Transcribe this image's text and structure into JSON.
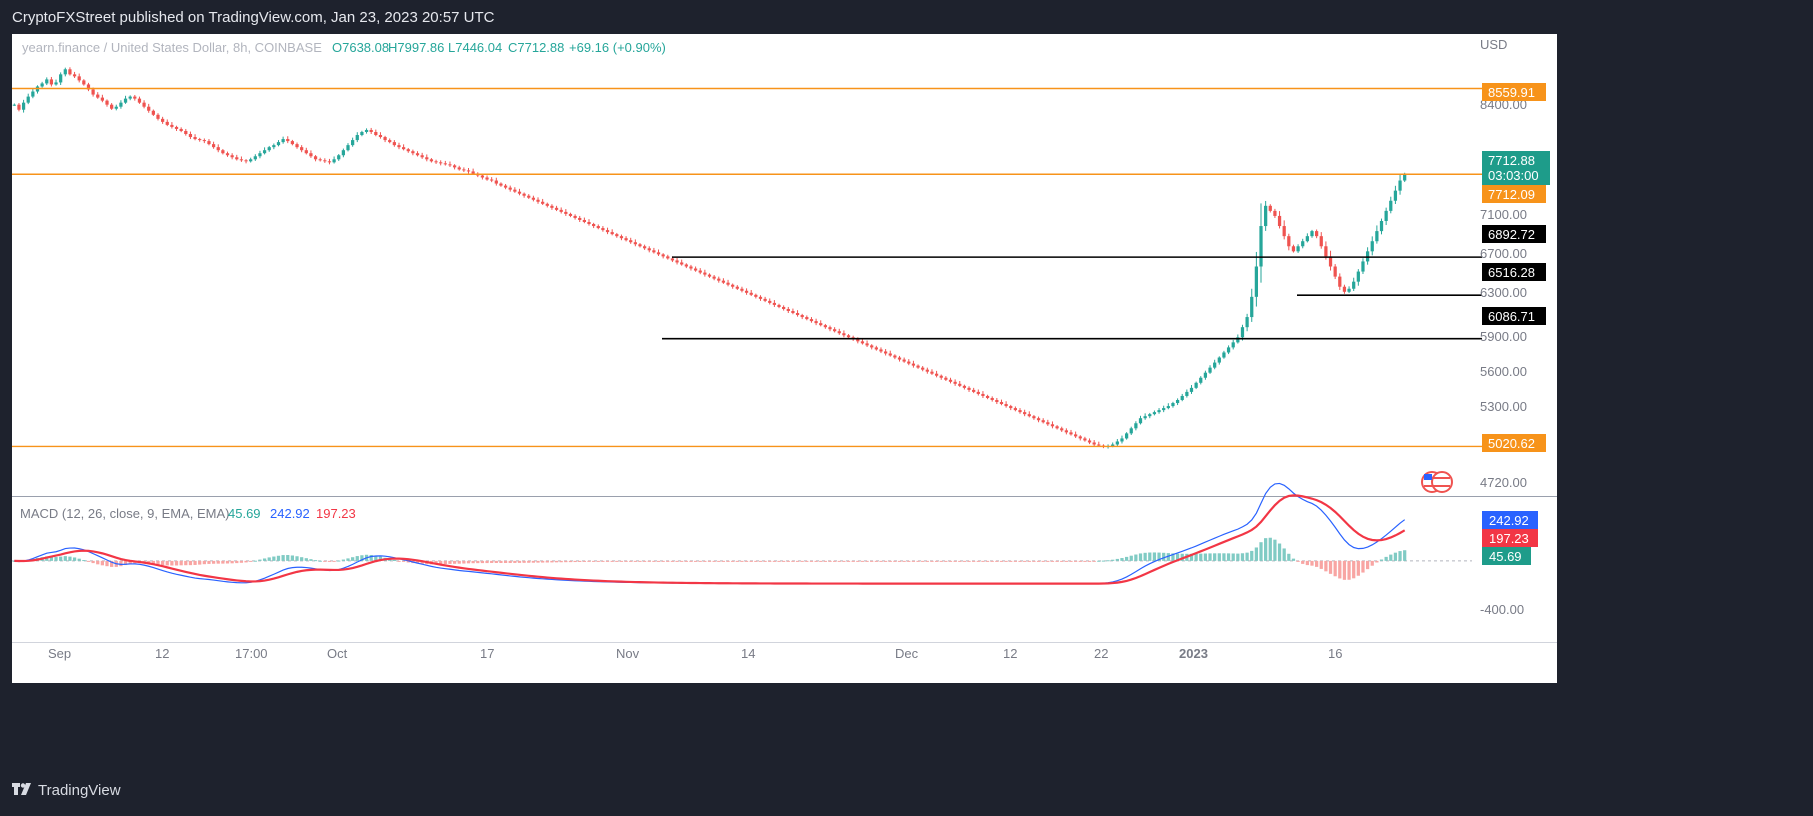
{
  "header": {
    "published": "CryptoFXStreet published on TradingView.com, Jan 23, 2023 20:57 UTC"
  },
  "footer": {
    "brand": "TradingView",
    "logo": "tradingview-logo-icon"
  },
  "symbol_line": {
    "name": "yearn.finance / United States Dollar, 8h, COINBASE",
    "open": "O7638.08",
    "high": "H7997.86",
    "low": "L7446.04",
    "close": "C7712.88",
    "change": "+69.16 (+0.90%)"
  },
  "price_scale": {
    "currency": "USD",
    "ticks": [
      "8400.00",
      "7100.00",
      "6700.00",
      "6300.00",
      "5900.00",
      "5600.00",
      "5300.00",
      "4720.00"
    ]
  },
  "macd_legend": {
    "label": "MACD (12, 26, close, 9, EMA, EMA)",
    "histogram": "45.69",
    "macd": "242.92",
    "signal": "197.23"
  },
  "macd_scale": {
    "ticks": [
      "-400.00"
    ]
  },
  "x_axis": {
    "ticks": [
      "Sep",
      "12",
      "17:00",
      "Oct",
      "17",
      "Nov",
      "14",
      "Dec",
      "12",
      "22",
      "2023",
      "16"
    ]
  },
  "colors": {
    "up": "#26a69a",
    "down": "#ef5350",
    "orange": "#f7931a",
    "macd": "#2962ff",
    "signal": "#f23645"
  },
  "chart_data": [
    {
      "type": "candlestick",
      "title": "yearn.finance / United States Dollar, 8h, COINBASE",
      "ylim": [
        4600,
        9000
      ],
      "horizontal_levels": [
        {
          "value": 8559.91,
          "label": "8559.91",
          "color": "#f7931a"
        },
        {
          "value": 7712.09,
          "label": "7712.09",
          "color": "#f7931a"
        },
        {
          "value": 6892.72,
          "label": "6892.72",
          "color": "#000000"
        },
        {
          "value": 6516.28,
          "label": "6516.28",
          "color": "#000000"
        },
        {
          "value": 6086.71,
          "label": "6086.71",
          "color": "#000000"
        },
        {
          "value": 5020.62,
          "label": "5020.62",
          "color": "#f7931a"
        }
      ],
      "last_price": {
        "value": 7712.88,
        "label": "7712.88",
        "countdown": "03:03:00"
      },
      "close_series": [
        8400,
        8350,
        8420,
        8480,
        8530,
        8580,
        8610,
        8650,
        8600,
        8620,
        8700,
        8750,
        8700,
        8680,
        8640,
        8600,
        8550,
        8500,
        8470,
        8440,
        8400,
        8360,
        8380,
        8420,
        8460,
        8480,
        8460,
        8420,
        8380,
        8340,
        8300,
        8260,
        8230,
        8200,
        8180,
        8160,
        8140,
        8110,
        8080,
        8060,
        8050,
        8040,
        8010,
        7980,
        7950,
        7920,
        7900,
        7880,
        7860,
        7850,
        7840,
        7860,
        7890,
        7920,
        7950,
        7980,
        8000,
        8030,
        8060,
        8040,
        8010,
        7980,
        7950,
        7920,
        7890,
        7860,
        7850,
        7840,
        7830,
        7860,
        7900,
        7950,
        8000,
        8050,
        8100,
        8130,
        8150,
        8130,
        8100,
        8080,
        8050,
        8030,
        8000,
        7980,
        7960,
        7940,
        7920,
        7900,
        7880,
        7860,
        7840,
        7830,
        7820,
        7810,
        7800,
        7780,
        7760,
        7750,
        7740,
        7720,
        7700,
        7680,
        7660,
        7650,
        7620,
        7600,
        7580,
        7560,
        7540,
        7520,
        7500,
        7480,
        7460,
        7440,
        7420,
        7400,
        7380,
        7360,
        7340,
        7320,
        7300,
        7280,
        7260,
        7240,
        7220,
        7200,
        7180,
        7160,
        7140,
        7120,
        7100,
        7080,
        7060,
        7040,
        7020,
        7000,
        6980,
        6960,
        6940,
        6920,
        6900,
        6880,
        6860,
        6840,
        6820,
        6800,
        6780,
        6760,
        6740,
        6720,
        6700,
        6680,
        6660,
        6640,
        6620,
        6600,
        6580,
        6560,
        6540,
        6520,
        6500,
        6480,
        6460,
        6440,
        6420,
        6400,
        6380,
        6360,
        6340,
        6320,
        6300,
        6280,
        6260,
        6240,
        6220,
        6200,
        6180,
        6160,
        6140,
        6120,
        6100,
        6080,
        6060,
        6040,
        6020,
        6000,
        5980,
        5960,
        5940,
        5920,
        5900,
        5880,
        5860,
        5840,
        5820,
        5800,
        5780,
        5760,
        5740,
        5720,
        5700,
        5680,
        5660,
        5640,
        5620,
        5600,
        5580,
        5560,
        5540,
        5520,
        5500,
        5480,
        5460,
        5440,
        5420,
        5400,
        5380,
        5360,
        5340,
        5320,
        5300,
        5280,
        5260,
        5240,
        5220,
        5200,
        5180,
        5160,
        5140,
        5120,
        5100,
        5080,
        5060,
        5040,
        5030,
        5020,
        5025,
        5040,
        5070,
        5100,
        5150,
        5200,
        5250,
        5300,
        5320,
        5340,
        5360,
        5380,
        5400,
        5420,
        5450,
        5480,
        5520,
        5560,
        5600,
        5650,
        5700,
        5750,
        5800,
        5850,
        5900,
        5950,
        6000,
        6050,
        6100,
        6200,
        6300,
        6500,
        6800,
        7200,
        7400,
        7350,
        7300,
        7200,
        7100,
        7000,
        6950,
        7000,
        7050,
        7100,
        7150,
        7100,
        7000,
        6900,
        6800,
        6700,
        6600,
        6550,
        6580,
        6650,
        6750,
        6850,
        6950,
        7050,
        7150,
        7250,
        7350,
        7450,
        7550,
        7650,
        7712
      ],
      "close_series_note": "8h closes sampled left to right"
    },
    {
      "type": "line",
      "title": "MACD (12, 26, close, 9, EMA, EMA)",
      "series": [
        {
          "name": "MACD",
          "last": 242.92
        },
        {
          "name": "Signal",
          "last": 197.23
        },
        {
          "name": "Histogram",
          "last": 45.69
        }
      ],
      "ylim": [
        -450,
        350
      ]
    }
  ]
}
